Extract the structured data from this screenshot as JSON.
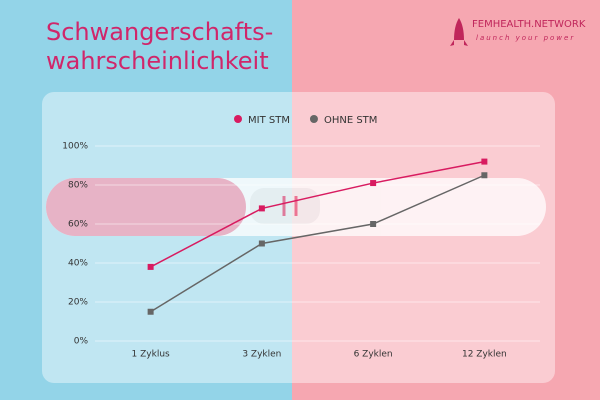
{
  "chart_data": {
    "type": "line",
    "title": [
      "Schwangerschafts-",
      "wahrscheinlichkeit"
    ],
    "brand": {
      "name": "FEMHEALTH.NETWORK",
      "tagline": "launch your power"
    },
    "categories": [
      "1 Zyklus",
      "3 Zyklen",
      "6 Zyklen",
      "12 Zyklen"
    ],
    "series": [
      {
        "name": "MIT STM",
        "color": "#d81b60",
        "values": [
          38,
          68,
          81,
          92
        ]
      },
      {
        "name": "OHNE STM",
        "color": "#666666",
        "values": [
          15,
          50,
          60,
          85
        ]
      }
    ],
    "ylim": [
      0,
      100
    ],
    "yticks": [
      {
        "value": 0,
        "label": "0%"
      },
      {
        "value": 20,
        "label": "20%"
      },
      {
        "value": 40,
        "label": "40%"
      },
      {
        "value": 60,
        "label": "60%"
      },
      {
        "value": 80,
        "label": "80%"
      },
      {
        "value": 100,
        "label": "100%"
      }
    ],
    "legend": "top"
  }
}
